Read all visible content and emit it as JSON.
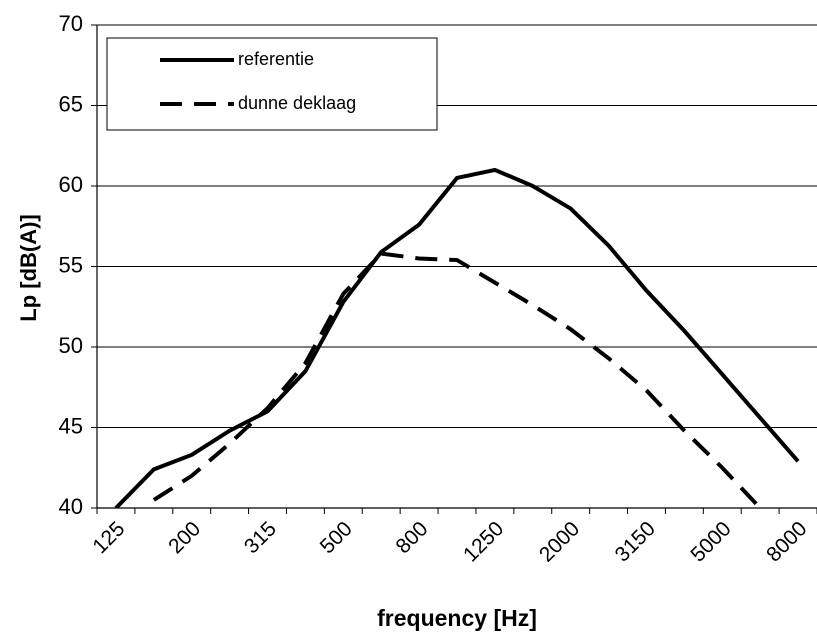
{
  "chart_data": {
    "type": "line",
    "xlabel": "frequency [Hz]",
    "ylabel": "Lp [dB(A)]",
    "categories": [
      "125",
      null,
      "200",
      null,
      "315",
      null,
      "500",
      null,
      "800",
      null,
      "1250",
      null,
      "2000",
      null,
      "3150",
      null,
      "5000",
      null,
      "8000"
    ],
    "series": [
      {
        "name": "referentie",
        "color": "#000000",
        "dash": "solid",
        "values": [
          40,
          42.4,
          43.3,
          44.8,
          46,
          48.5,
          52.8,
          55.9,
          57.6,
          60.5,
          61,
          60,
          58.6,
          56.3,
          53.5,
          51,
          48.3,
          45.6,
          42.9
        ]
      },
      {
        "name": "dunne deklaag",
        "color": "#000000",
        "dash": "dashed",
        "values": [
          null,
          40.5,
          42,
          44,
          46.2,
          49,
          53.3,
          55.8,
          55.5,
          55.4,
          54,
          52.6,
          51.1,
          49.3,
          47.3,
          44.8,
          42.5,
          40,
          null
        ]
      }
    ],
    "ylim": [
      40,
      70
    ],
    "yticks": [
      40,
      45,
      50,
      55,
      60,
      65,
      70
    ],
    "grid": true,
    "legend": "upper left"
  }
}
